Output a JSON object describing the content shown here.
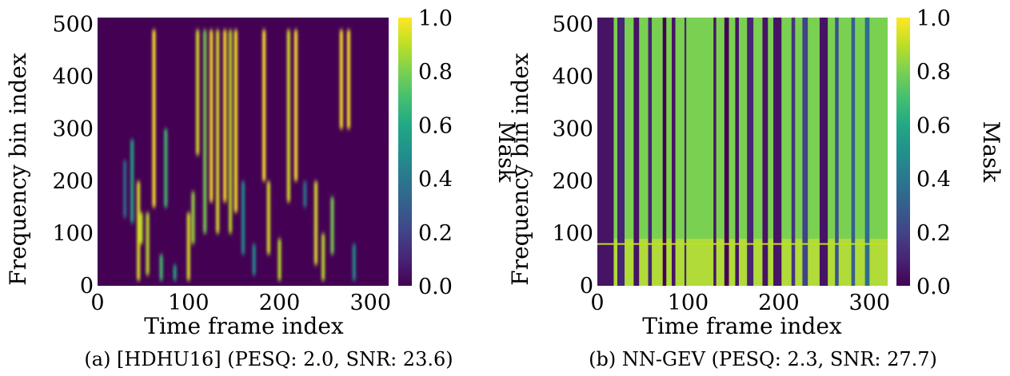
{
  "chart_data": [
    {
      "type": "heatmap",
      "caption": "(a) [HDHU16] (PESQ: 2.0, SNR: 23.6)",
      "xlabel": "Time frame index",
      "ylabel": "Frequency bin index",
      "xlim": [
        0,
        320
      ],
      "ylim": [
        0,
        513
      ],
      "xticks": [
        "0",
        "100",
        "200",
        "300"
      ],
      "yticks": [
        "0",
        "100",
        "200",
        "300",
        "400",
        "500"
      ],
      "colorbar": {
        "label": "Mask",
        "range": [
          0.0,
          1.0
        ],
        "ticks": [
          "0.0",
          "0.2",
          "0.4",
          "0.6",
          "0.8",
          "1.0"
        ],
        "colormap": "viridis"
      },
      "background_value": 0.0,
      "activations": [
        {
          "t": 30,
          "f_lo": 130,
          "f_hi": 240,
          "v": 0.35
        },
        {
          "t": 38,
          "f_lo": 120,
          "f_hi": 280,
          "v": 0.6
        },
        {
          "t": 45,
          "f_lo": 10,
          "f_hi": 200,
          "v": 0.95
        },
        {
          "t": 48,
          "f_lo": 80,
          "f_hi": 140,
          "v": 0.9
        },
        {
          "t": 55,
          "f_lo": 20,
          "f_hi": 140,
          "v": 0.9
        },
        {
          "t": 62,
          "f_lo": 150,
          "f_hi": 490,
          "v": 1.0
        },
        {
          "t": 70,
          "f_lo": 10,
          "f_hi": 60,
          "v": 0.7
        },
        {
          "t": 75,
          "f_lo": 150,
          "f_hi": 300,
          "v": 0.7
        },
        {
          "t": 85,
          "f_lo": 10,
          "f_hi": 40,
          "v": 0.6
        },
        {
          "t": 100,
          "f_lo": 10,
          "f_hi": 140,
          "v": 0.95
        },
        {
          "t": 105,
          "f_lo": 80,
          "f_hi": 180,
          "v": 0.85
        },
        {
          "t": 110,
          "f_lo": 250,
          "f_hi": 490,
          "v": 0.95
        },
        {
          "t": 118,
          "f_lo": 100,
          "f_hi": 490,
          "v": 0.8
        },
        {
          "t": 125,
          "f_lo": 160,
          "f_hi": 490,
          "v": 1.0
        },
        {
          "t": 132,
          "f_lo": 100,
          "f_hi": 490,
          "v": 0.95
        },
        {
          "t": 140,
          "f_lo": 160,
          "f_hi": 490,
          "v": 1.0
        },
        {
          "t": 146,
          "f_lo": 100,
          "f_hi": 490,
          "v": 0.9
        },
        {
          "t": 152,
          "f_lo": 140,
          "f_hi": 490,
          "v": 1.0
        },
        {
          "t": 160,
          "f_lo": 60,
          "f_hi": 200,
          "v": 0.5
        },
        {
          "t": 172,
          "f_lo": 20,
          "f_hi": 80,
          "v": 0.5
        },
        {
          "t": 183,
          "f_lo": 200,
          "f_hi": 490,
          "v": 1.0
        },
        {
          "t": 188,
          "f_lo": 60,
          "f_hi": 200,
          "v": 0.95
        },
        {
          "t": 200,
          "f_lo": 10,
          "f_hi": 90,
          "v": 0.9
        },
        {
          "t": 210,
          "f_lo": 160,
          "f_hi": 490,
          "v": 0.95
        },
        {
          "t": 218,
          "f_lo": 200,
          "f_hi": 490,
          "v": 1.0
        },
        {
          "t": 228,
          "f_lo": 150,
          "f_hi": 200,
          "v": 0.4
        },
        {
          "t": 240,
          "f_lo": 40,
          "f_hi": 200,
          "v": 0.95
        },
        {
          "t": 248,
          "f_lo": 10,
          "f_hi": 100,
          "v": 0.9
        },
        {
          "t": 258,
          "f_lo": 60,
          "f_hi": 170,
          "v": 0.8
        },
        {
          "t": 268,
          "f_lo": 300,
          "f_hi": 490,
          "v": 1.0
        },
        {
          "t": 276,
          "f_lo": 300,
          "f_hi": 490,
          "v": 1.0
        },
        {
          "t": 282,
          "f_lo": 10,
          "f_hi": 80,
          "v": 0.5
        }
      ]
    },
    {
      "type": "heatmap",
      "caption": "(b) NN-GEV (PESQ: 2.3, SNR: 27.7)",
      "xlabel": "Time frame index",
      "ylabel": "Frequency bin index",
      "xlim": [
        0,
        320
      ],
      "ylim": [
        0,
        513
      ],
      "xticks": [
        "0",
        "100",
        "200",
        "300"
      ],
      "yticks": [
        "0",
        "100",
        "200",
        "300",
        "400",
        "500"
      ],
      "colorbar": {
        "label": "Mask",
        "range": [
          0.0,
          1.0
        ],
        "ticks": [
          "0.0",
          "0.2",
          "0.4",
          "0.6",
          "0.8",
          "1.0"
        ],
        "colormap": "viridis"
      },
      "background_value": 0.8,
      "dark_columns": [
        {
          "t0": 0,
          "t1": 18,
          "v": 0.05
        },
        {
          "t0": 22,
          "t1": 30,
          "v": 0.1
        },
        {
          "t0": 40,
          "t1": 46,
          "v": 0.05
        },
        {
          "t0": 56,
          "t1": 60,
          "v": 0.1
        },
        {
          "t0": 72,
          "t1": 76,
          "v": 0.0
        },
        {
          "t0": 82,
          "t1": 86,
          "v": 0.05
        },
        {
          "t0": 96,
          "t1": 98,
          "v": 0.1
        },
        {
          "t0": 128,
          "t1": 131,
          "v": 0.05
        },
        {
          "t0": 140,
          "t1": 145,
          "v": 0.0
        },
        {
          "t0": 152,
          "t1": 156,
          "v": 0.05
        },
        {
          "t0": 165,
          "t1": 172,
          "v": 0.1
        },
        {
          "t0": 182,
          "t1": 188,
          "v": 0.05
        },
        {
          "t0": 194,
          "t1": 203,
          "v": 0.05
        },
        {
          "t0": 214,
          "t1": 218,
          "v": 0.15
        },
        {
          "t0": 226,
          "t1": 232,
          "v": 0.2
        },
        {
          "t0": 245,
          "t1": 254,
          "v": 0.05
        },
        {
          "t0": 262,
          "t1": 266,
          "v": 0.25
        },
        {
          "t0": 280,
          "t1": 284,
          "v": 0.3
        },
        {
          "t0": 295,
          "t1": 300,
          "v": 0.35
        }
      ],
      "low_band": {
        "f_lo": 0,
        "f_hi": 90,
        "v": 0.95
      },
      "stripe_bin": 80
    }
  ]
}
